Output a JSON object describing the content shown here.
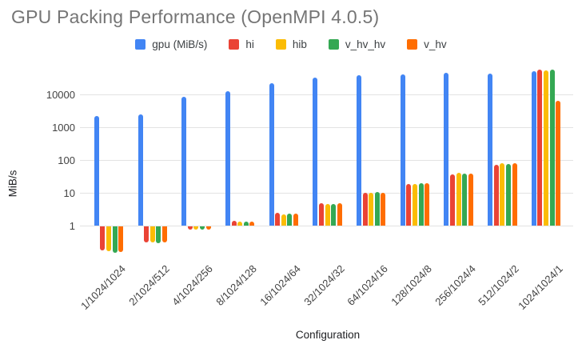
{
  "chart_data": {
    "type": "bar",
    "title": "GPU Packing Performance (OpenMPI 4.0.5)",
    "title_color": "#757575",
    "xlabel": "Configuration",
    "ylabel": "MiB/s",
    "y_scale": "log",
    "baseline": 1,
    "grid": true,
    "legend_position": "top",
    "y_ticks": [
      "1",
      "10",
      "100",
      "1000",
      "10000"
    ],
    "ylim": [
      0.13,
      60000
    ],
    "categories": [
      "1/1024/1024",
      "2/1024/512",
      "4/1024/256",
      "8/1024/128",
      "16/1024/64",
      "32/1024/32",
      "64/1024/16",
      "128/1024/8",
      "256/1024/4",
      "512/1024/2",
      "1024/1024/1"
    ],
    "series": [
      {
        "name": "gpu (MiB/s)",
        "color": "#4285F4",
        "values": [
          2200,
          2500,
          8300,
          12500,
          22000,
          32000,
          38500,
          41500,
          46000,
          44000,
          51000
        ]
      },
      {
        "name": "hi",
        "color": "#EA4335",
        "values": [
          0.19,
          0.33,
          0.85,
          1.4,
          2.4,
          4.9,
          10,
          19,
          36,
          70,
          56000
        ]
      },
      {
        "name": "hib",
        "color": "#FBBC04",
        "values": [
          0.18,
          0.33,
          0.85,
          1.35,
          2.2,
          4.5,
          9.8,
          18.5,
          41,
          80,
          53000
        ]
      },
      {
        "name": "v_hv_hv",
        "color": "#34A853",
        "values": [
          0.16,
          0.31,
          0.9,
          1.3,
          2.3,
          4.6,
          10.5,
          20,
          39,
          74,
          58000
        ]
      },
      {
        "name": "v_hv",
        "color": "#FF6D01",
        "values": [
          0.17,
          0.32,
          0.85,
          1.35,
          2.3,
          4.7,
          10,
          19.5,
          38,
          78,
          6300
        ]
      }
    ]
  }
}
